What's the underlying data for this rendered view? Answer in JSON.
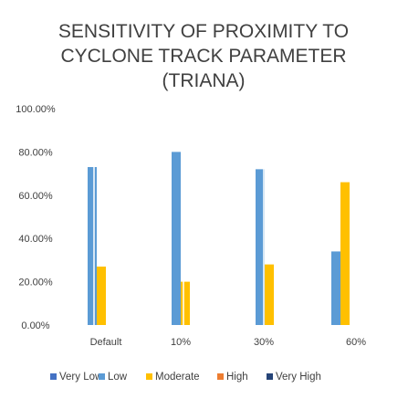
{
  "chart_data": {
    "type": "bar",
    "title": "SENSITIVITY OF PROXIMITY TO CYCLONE TRACK PARAMETER (TRIANA)",
    "title_lines": [
      "SENSITIVITY OF PROXIMITY TO",
      "CYCLONE TRACK PARAMETER",
      "(TRIANA)"
    ],
    "categories": [
      "Default",
      "10%",
      "30%",
      "60%"
    ],
    "ylim": [
      0,
      1
    ],
    "yticks": [
      "0.00%",
      "20.00%",
      "40.00%",
      "60.00%",
      "80.00%",
      "100.00%"
    ],
    "ytick_values": [
      0,
      0.2,
      0.4,
      0.6,
      0.8,
      1.0
    ],
    "grid": false,
    "legend_position": "bottom",
    "series": [
      {
        "name": "Very Low",
        "color": "#4472C4",
        "values": [
          0,
          0,
          0,
          0
        ]
      },
      {
        "name": "Low",
        "color": "#5B9BD5",
        "values": [
          0.73,
          0.8,
          0.72,
          0.34
        ]
      },
      {
        "name": "Moderate",
        "color": "#FFC000",
        "values": [
          0.27,
          0.2,
          0.28,
          0.66
        ]
      },
      {
        "name": "High",
        "color": "#ED7D31",
        "values": [
          0,
          0,
          0,
          0
        ]
      },
      {
        "name": "Very High",
        "color": "#264478",
        "values": [
          0,
          0,
          0,
          0
        ]
      }
    ]
  }
}
